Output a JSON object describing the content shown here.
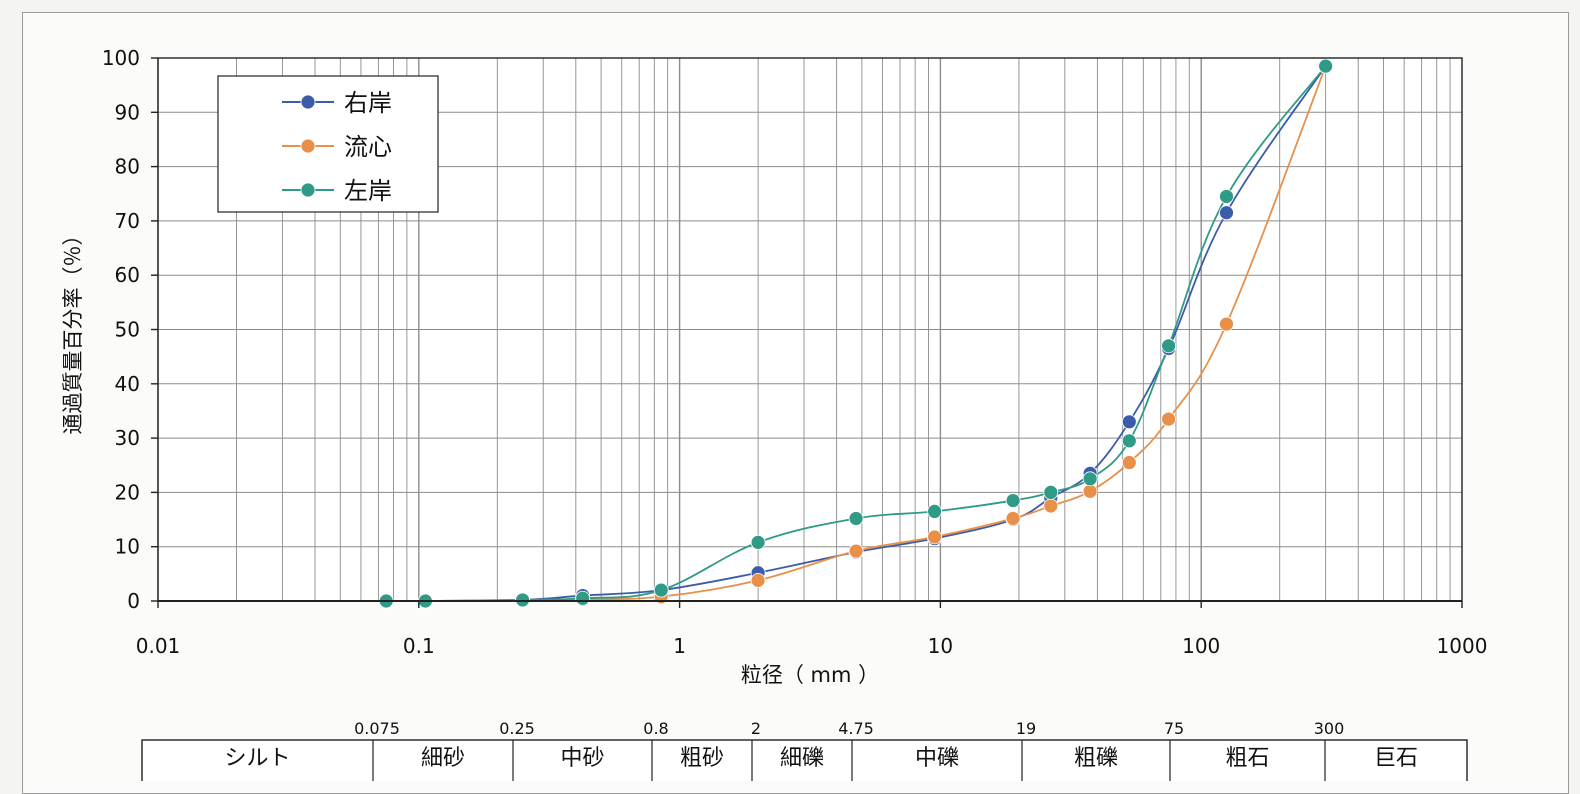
{
  "chart_data": {
    "type": "line",
    "xscale": "log",
    "xlim": [
      0.01,
      1000
    ],
    "ylim": [
      0,
      100
    ],
    "grid": true,
    "legend_position": "top-left",
    "xlabel": "粒径（ mm ）",
    "ylabel": "通過質量百分率（％）",
    "x_ticks": [
      "0.01",
      "0.1",
      "1",
      "10",
      "100",
      "1000"
    ],
    "y_ticks": [
      "0",
      "10",
      "20",
      "30",
      "40",
      "50",
      "60",
      "70",
      "80",
      "90",
      "100"
    ],
    "x": [
      0.075,
      0.106,
      0.25,
      0.425,
      0.85,
      2,
      4.75,
      9.5,
      19,
      26.5,
      37.5,
      53,
      75,
      125,
      300
    ],
    "series": [
      {
        "name": "右岸",
        "color": "#3b5ca8",
        "values": [
          0,
          0,
          0.2,
          1,
          2,
          5.2,
          9,
          11.5,
          15,
          19,
          23.5,
          33,
          46.5,
          71.5,
          98.5
        ]
      },
      {
        "name": "流心",
        "color": "#e8904a",
        "values": [
          0,
          0,
          0.2,
          0.3,
          0.8,
          3.8,
          9.2,
          11.8,
          15.2,
          17.5,
          20.2,
          25.5,
          33.5,
          51,
          98.5
        ]
      },
      {
        "name": "左岸",
        "color": "#2f9a86",
        "values": [
          0,
          0,
          0.2,
          0.5,
          2,
          10.8,
          15.2,
          16.5,
          18.5,
          20,
          22.5,
          29.5,
          47,
          74.5,
          98.5
        ]
      }
    ]
  },
  "classification": {
    "boundaries": [
      "0.075",
      "0.25",
      "0.8",
      "2",
      "4.75",
      "19",
      "75",
      "300"
    ],
    "classes": [
      "シルト",
      "細砂",
      "中砂",
      "粗砂",
      "細礫",
      "中礫",
      "粗礫",
      "粗石",
      "巨石"
    ]
  },
  "colors": {
    "grid": "#8c8c8c",
    "axis": "#222222",
    "background": "#fbfbfa"
  }
}
